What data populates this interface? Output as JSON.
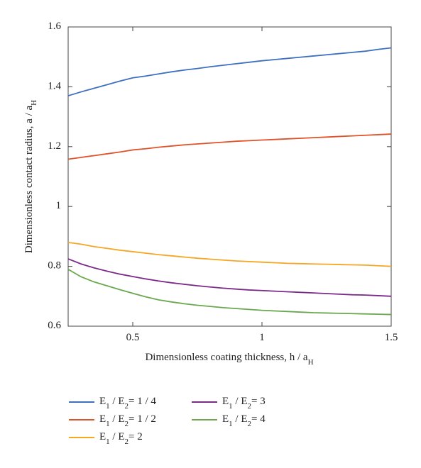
{
  "chart_data": {
    "type": "line",
    "x_label": "Dimensionless coating thickness, h / aH",
    "y_label": "Dimensionless contact radius, a / aH",
    "xlim": [
      0.25,
      1.5
    ],
    "xticks": [
      0.5,
      1,
      1.5
    ],
    "ylim": [
      0.6,
      1.6
    ],
    "yticks": [
      0.6,
      0.8,
      1,
      1.2,
      1.4,
      1.6
    ],
    "legend": "below",
    "x": [
      0.25,
      0.3,
      0.35,
      0.4,
      0.45,
      0.5,
      0.55,
      0.6,
      0.65,
      0.7,
      0.75,
      0.8,
      0.85,
      0.9,
      0.95,
      1,
      1.05,
      1.1,
      1.15,
      1.2,
      1.25,
      1.3,
      1.35,
      1.4,
      1.45,
      1.5
    ],
    "series": [
      {
        "name": "E1 / E2= 1 / 4",
        "color": "#3f6fbf",
        "values": [
          1.37,
          1.383,
          1.395,
          1.407,
          1.419,
          1.43,
          1.436,
          1.443,
          1.45,
          1.456,
          1.461,
          1.467,
          1.472,
          1.477,
          1.482,
          1.487,
          1.491,
          1.495,
          1.499,
          1.503,
          1.507,
          1.511,
          1.515,
          1.519,
          1.525,
          1.53
        ]
      },
      {
        "name": "E1 / E2= 1 / 2",
        "color": "#e0522a",
        "values": [
          1.158,
          1.164,
          1.17,
          1.176,
          1.182,
          1.189,
          1.193,
          1.198,
          1.202,
          1.206,
          1.209,
          1.212,
          1.215,
          1.218,
          1.22,
          1.222,
          1.224,
          1.226,
          1.228,
          1.23,
          1.232,
          1.234,
          1.236,
          1.238,
          1.24,
          1.242
        ]
      },
      {
        "name": "E1 / E2= 2",
        "color": "#f5a623",
        "values": [
          0.88,
          0.874,
          0.866,
          0.86,
          0.854,
          0.849,
          0.844,
          0.839,
          0.835,
          0.831,
          0.827,
          0.824,
          0.821,
          0.818,
          0.816,
          0.814,
          0.812,
          0.81,
          0.809,
          0.808,
          0.807,
          0.806,
          0.805,
          0.804,
          0.802,
          0.8
        ]
      },
      {
        "name": "E1 / E2= 3",
        "color": "#7b2a8a",
        "values": [
          0.825,
          0.808,
          0.795,
          0.784,
          0.774,
          0.766,
          0.758,
          0.751,
          0.745,
          0.74,
          0.735,
          0.731,
          0.727,
          0.724,
          0.721,
          0.719,
          0.717,
          0.715,
          0.713,
          0.711,
          0.709,
          0.707,
          0.705,
          0.704,
          0.702,
          0.7
        ]
      },
      {
        "name": "E1 / E2= 4",
        "color": "#6aa84f",
        "values": [
          0.79,
          0.765,
          0.748,
          0.735,
          0.722,
          0.71,
          0.698,
          0.688,
          0.681,
          0.675,
          0.67,
          0.666,
          0.662,
          0.659,
          0.656,
          0.653,
          0.651,
          0.649,
          0.647,
          0.645,
          0.644,
          0.643,
          0.642,
          0.641,
          0.64,
          0.639
        ]
      }
    ]
  }
}
